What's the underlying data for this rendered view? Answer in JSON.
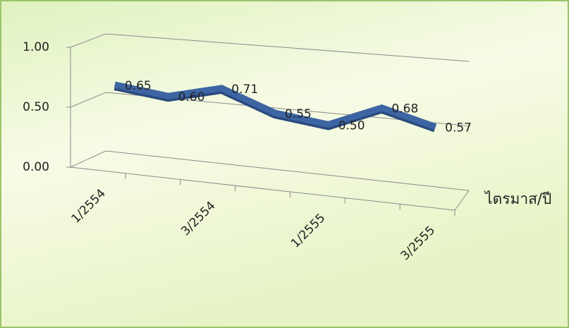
{
  "chart_data": {
    "type": "line3d",
    "categories": [
      "1/2554",
      null,
      "3/2554",
      null,
      "1/2555",
      null,
      "3/2555"
    ],
    "values": [
      0.65,
      0.6,
      0.71,
      0.55,
      0.5,
      0.68,
      0.57
    ],
    "value_labels": [
      "0.65",
      "0.60",
      "0.71",
      "0.55",
      "0.50",
      "0.68",
      "0.57"
    ],
    "color": "#3d65a3",
    "x_label": "ไตรมาส/ปี",
    "ylim": [
      0,
      1
    ],
    "yticks": [
      {
        "value": 0,
        "label": "0.00"
      },
      {
        "value": 0.5,
        "label": "0.50"
      },
      {
        "value": 1,
        "label": "1.00"
      }
    ],
    "grid": true
  }
}
